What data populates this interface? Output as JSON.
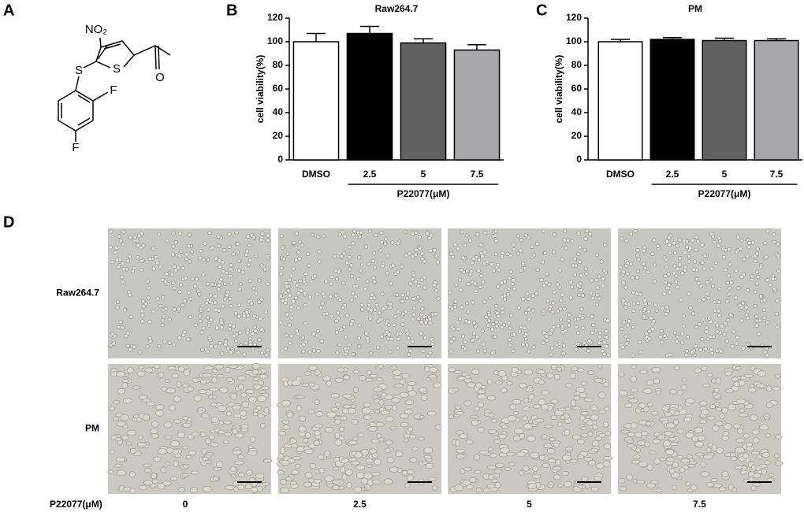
{
  "panel_labels": [
    "A",
    "B",
    "C",
    "D"
  ],
  "molecule": {
    "atoms": [
      "NO₂",
      "S",
      "S",
      "F",
      "F",
      "O"
    ]
  },
  "chart_data": [
    {
      "type": "bar",
      "title": "Raw264.7",
      "y_label": "cell viability(%)",
      "x_group_label": "P22077(μM)",
      "categories": [
        "DMSO",
        "2.5",
        "5",
        "7.5"
      ],
      "values": [
        100,
        107,
        99,
        93
      ],
      "errors": [
        7,
        6,
        3.5,
        4.5
      ],
      "colors": [
        "#ffffff",
        "#000000",
        "#616161",
        "#a7a7a9"
      ],
      "ylim": [
        0,
        120
      ],
      "yticks": [
        0,
        20,
        40,
        60,
        80,
        100,
        120
      ]
    },
    {
      "type": "bar",
      "title": "PM",
      "y_label": "cell viability(%)",
      "x_group_label": "P22077(μM)",
      "categories": [
        "DMSO",
        "2.5",
        "5",
        "7.5"
      ],
      "values": [
        100,
        102,
        101,
        101
      ],
      "errors": [
        2,
        1.5,
        2,
        1.5
      ],
      "colors": [
        "#ffffff",
        "#000000",
        "#616161",
        "#a7a7a9"
      ],
      "ylim": [
        0,
        120
      ],
      "yticks": [
        0,
        20,
        40,
        60,
        80,
        100,
        120
      ]
    }
  ],
  "micrographs": {
    "rows": [
      "Raw264.7",
      "PM"
    ],
    "x_label": "P22077(μM)",
    "columns": [
      "0",
      "2.5",
      "5",
      "7.5"
    ]
  }
}
